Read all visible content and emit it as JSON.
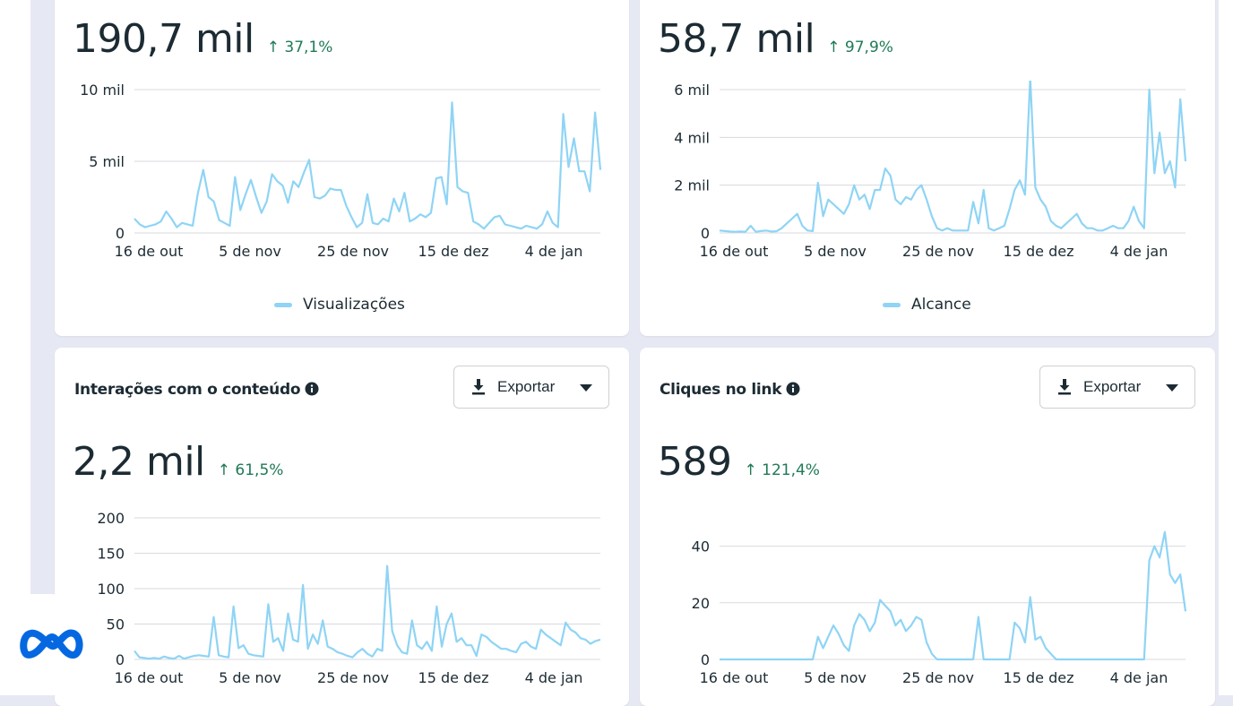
{
  "cards": [
    {
      "id": "views",
      "title": "",
      "metric": "190,7 mil",
      "change": "↑ 37,1%",
      "legend": "Visualizações",
      "chart_data": {
        "type": "line",
        "x_ticks": [
          "16 de out",
          "5 de nov",
          "25 de nov",
          "15 de dez",
          "4 de jan"
        ],
        "y_ticks": [
          "0",
          "5 mil",
          "10 mil"
        ],
        "ylim": [
          0,
          10000
        ],
        "series": [
          {
            "name": "Visualizações",
            "color": "#8fd4f5",
            "values": [
              1000,
              600,
              400,
              500,
              600,
              800,
              1500,
              1000,
              400,
              700,
              600,
              500,
              2800,
              4400,
              2500,
              2200,
              900,
              700,
              500,
              3900,
              1600,
              2700,
              3700,
              2500,
              1400,
              2200,
              4100,
              3600,
              3300,
              2100,
              3600,
              3200,
              4200,
              5100,
              2500,
              2400,
              2600,
              3100,
              3000,
              3000,
              1900,
              1100,
              400,
              700,
              2700,
              700,
              600,
              1000,
              800,
              2400,
              1500,
              2800,
              800,
              1000,
              1300,
              1100,
              1400,
              3800,
              3900,
              2000,
              9100,
              3200,
              2900,
              2800,
              800,
              600,
              300,
              700,
              1100,
              1200,
              600,
              500,
              400,
              300,
              500,
              400,
              300,
              600,
              1500,
              700,
              400,
              8300,
              4600,
              6600,
              4300,
              4300,
              2900,
              8400,
              4400
            ]
          }
        ]
      }
    },
    {
      "id": "reach",
      "title": "",
      "metric": "58,7 mil",
      "change": "↑ 97,9%",
      "legend": "Alcance",
      "chart_data": {
        "type": "line",
        "x_ticks": [
          "16 de out",
          "5 de nov",
          "25 de nov",
          "15 de dez",
          "4 de jan"
        ],
        "y_ticks": [
          "0",
          "2 mil",
          "4 mil",
          "6 mil"
        ],
        "ylim": [
          0,
          6000
        ],
        "series": [
          {
            "name": "Alcance",
            "color": "#8fd4f5",
            "values": [
              100,
              80,
              60,
              50,
              60,
              50,
              300,
              50,
              80,
              100,
              60,
              70,
              200,
              400,
              600,
              800,
              300,
              100,
              80,
              2100,
              700,
              1400,
              1200,
              1000,
              800,
              1200,
              2000,
              1400,
              1600,
              1000,
              1800,
              1800,
              2700,
              2400,
              1400,
              1200,
              1500,
              1400,
              1800,
              2000,
              1400,
              700,
              200,
              100,
              200,
              100,
              100,
              100,
              100,
              1300,
              400,
              1800,
              200,
              100,
              200,
              300,
              1000,
              1800,
              2200,
              1600,
              6500,
              1900,
              1400,
              1100,
              500,
              300,
              200,
              400,
              600,
              800,
              400,
              200,
              200,
              100,
              100,
              200,
              300,
              200,
              200,
              500,
              1100,
              500,
              200,
              6000,
              2500,
              4200,
              2500,
              3000,
              1900,
              5600,
              3000
            ]
          }
        ]
      }
    },
    {
      "id": "interactions",
      "title": "Interações com o conteúdo",
      "export_label": "Exportar",
      "metric": "2,2 mil",
      "change": "↑ 61,5%",
      "chart_data": {
        "type": "line",
        "x_ticks": [
          "16 de out",
          "5 de nov",
          "25 de nov",
          "15 de dez",
          "4 de jan"
        ],
        "y_ticks": [
          "0",
          "50",
          "100",
          "150",
          "200"
        ],
        "ylim": [
          0,
          200
        ],
        "series": [
          {
            "name": "",
            "color": "#8fd4f5",
            "values": [
              12,
              3,
              2,
              1,
              2,
              1,
              4,
              2,
              1,
              5,
              1,
              3,
              5,
              6,
              5,
              4,
              60,
              6,
              4,
              3,
              75,
              16,
              20,
              8,
              6,
              5,
              4,
              78,
              25,
              30,
              12,
              65,
              28,
              25,
              105,
              15,
              35,
              22,
              55,
              18,
              15,
              10,
              8,
              5,
              3,
              10,
              15,
              8,
              4,
              15,
              12,
              132,
              40,
              20,
              10,
              8,
              55,
              20,
              15,
              25,
              12,
              75,
              18,
              50,
              65,
              25,
              30,
              20,
              20,
              5,
              35,
              32,
              25,
              20,
              15,
              15,
              12,
              10,
              22,
              25,
              18,
              15,
              42,
              35,
              30,
              25,
              20,
              52,
              42,
              38,
              30,
              28,
              22,
              26,
              28
            ]
          }
        ]
      }
    },
    {
      "id": "clicks",
      "title": "Cliques no link",
      "export_label": "Exportar",
      "metric": "589",
      "change": "↑ 121,4%",
      "chart_data": {
        "type": "line",
        "x_ticks": [
          "16 de out",
          "5 de nov",
          "25 de nov",
          "15 de dez",
          "4 de jan"
        ],
        "y_ticks": [
          "0",
          "20",
          "40"
        ],
        "ylim": [
          0,
          50
        ],
        "series": [
          {
            "name": "",
            "color": "#8fd4f5",
            "values": [
              0,
              0,
              0,
              0,
              0,
              0,
              0,
              0,
              0,
              0,
              0,
              0,
              0,
              0,
              0,
              0,
              0,
              0,
              0,
              8,
              4,
              8,
              12,
              9,
              5,
              3,
              12,
              16,
              14,
              10,
              13,
              21,
              19,
              17,
              12,
              14,
              10,
              12,
              15,
              14,
              6,
              2,
              0,
              0,
              0,
              0,
              0,
              0,
              0,
              0,
              15,
              0,
              0,
              0,
              0,
              0,
              0,
              13,
              11,
              6,
              22,
              7,
              8,
              4,
              2,
              0,
              0,
              0,
              0,
              0,
              0,
              0,
              0,
              0,
              0,
              0,
              0,
              0,
              0,
              0,
              0,
              0,
              0,
              35,
              40,
              36,
              45,
              30,
              27,
              30,
              17
            ]
          }
        ]
      }
    }
  ]
}
